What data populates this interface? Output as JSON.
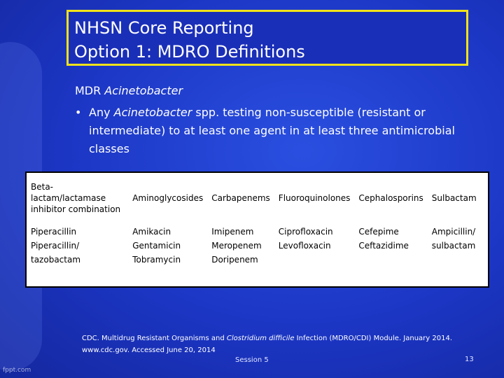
{
  "title": {
    "lines": [
      "NHSN Core Reporting",
      "Option 1: MDRO Definitions"
    ]
  },
  "heading": {
    "segments": [
      {
        "text": "MDR ",
        "italic": false
      },
      {
        "text": "Acinetobacter",
        "italic": true
      }
    ]
  },
  "bullet": {
    "segments": [
      {
        "text": "Any ",
        "italic": false
      },
      {
        "text": "Acinetobacter",
        "italic": true
      },
      {
        "text": " spp. testing non-susceptible (resistant or intermediate) to at least one agent in at least three antimicrobial classes",
        "italic": false
      }
    ]
  },
  "table": {
    "rows": [
      [
        [
          "Beta-lactam/lactamase inhibitor combination"
        ],
        [
          "Aminoglycosides"
        ],
        [
          "Carbapenems"
        ],
        [
          "Fluoroquinolones"
        ],
        [
          "Cephalosporins"
        ],
        [
          "Sulbactam"
        ]
      ],
      [
        [
          "Piperacillin",
          "Piperacillin/ tazobactam"
        ],
        [
          "Amikacin",
          "Gentamicin",
          "Tobramycin"
        ],
        [
          "Imipenem",
          "Meropenem",
          "Doripenem"
        ],
        [
          "Ciprofloxacin",
          "Levofloxacin"
        ],
        [
          "Cefepime",
          "Ceftazidime"
        ],
        [
          "Ampicillin/ sulbactam"
        ]
      ]
    ]
  },
  "citation": {
    "segments": [
      {
        "text": "CDC. Multidrug Resistant Organisms and ",
        "italic": false
      },
      {
        "text": "Clostridium difficile",
        "italic": true
      },
      {
        "text": " Infection (MDRO/CDI) Module. January 2014. www.cdc.gov. Accessed June 20, 2014",
        "italic": false
      }
    ]
  },
  "footer": {
    "session": "Session 5",
    "page": "13",
    "watermark": "fppt.com"
  }
}
